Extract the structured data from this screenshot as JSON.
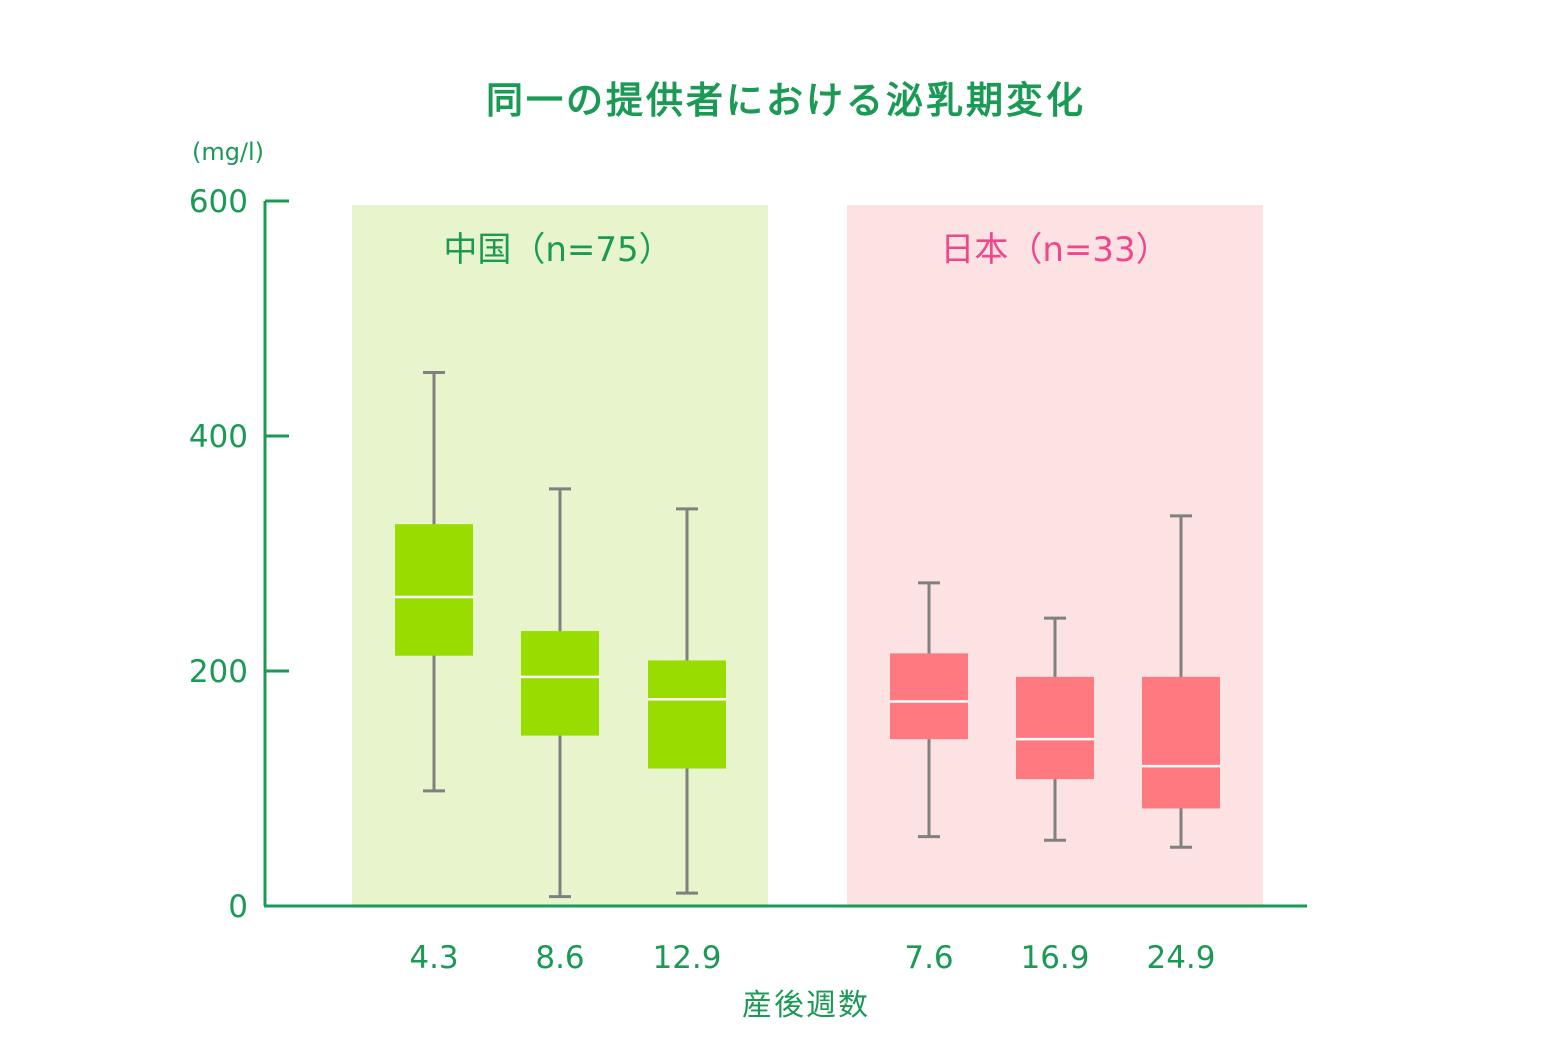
{
  "colors": {
    "axis": "#1a9a55",
    "text_green": "#1a9a55",
    "china_box": "#99dd00",
    "china_band": "#e8f4cc",
    "japan_box": "#ff7a80",
    "japan_band": "#fde2e4",
    "japan_text": "#f0468c",
    "whisker": "#808080",
    "median": "#ffffff"
  },
  "chart_data": {
    "type": "boxplot",
    "title": "同一の提供者における泌乳期変化",
    "ylabel": "(mg/l)",
    "xlabel": "産後週数",
    "ylim": [
      0,
      600
    ],
    "yticks": [
      "0",
      "200",
      "400",
      "600"
    ],
    "groups": [
      {
        "label": "中国（n=75）",
        "boxes": [
          {
            "x": "4.3",
            "min": 98,
            "q1": 213,
            "median": 263,
            "q3": 325,
            "max": 454
          },
          {
            "x": "8.6",
            "min": 8,
            "q1": 145,
            "median": 195,
            "q3": 234,
            "max": 355
          },
          {
            "x": "12.9",
            "min": 11,
            "q1": 117,
            "median": 176,
            "q3": 209,
            "max": 338
          }
        ]
      },
      {
        "label": "日本（n=33）",
        "boxes": [
          {
            "x": "7.6",
            "min": 59,
            "q1": 142,
            "median": 174,
            "q3": 215,
            "max": 275
          },
          {
            "x": "16.9",
            "min": 56,
            "q1": 108,
            "median": 142,
            "q3": 195,
            "max": 245
          },
          {
            "x": "24.9",
            "min": 50,
            "q1": 83,
            "median": 119,
            "q3": 195,
            "max": 332
          }
        ]
      }
    ]
  }
}
